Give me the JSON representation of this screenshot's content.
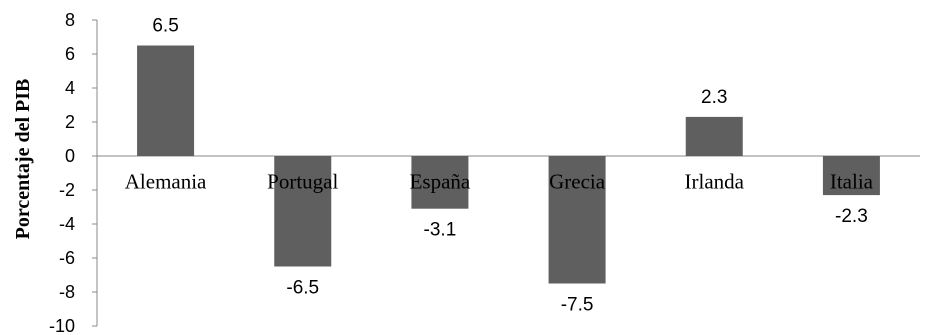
{
  "chart_data": {
    "type": "bar",
    "categories": [
      "Alemania",
      "Portugal",
      "España",
      "Grecia",
      "Irlanda",
      "Italia"
    ],
    "values": [
      6.5,
      -6.5,
      -3.1,
      -7.5,
      2.3,
      -2.3
    ],
    "value_labels": [
      "6.5",
      "-6.5",
      "-3.1",
      "-7.5",
      "2.3",
      "-2.3"
    ],
    "title": "",
    "xlabel": "",
    "ylabel": "Porcentaje del PIB",
    "ylim": [
      -10,
      8
    ],
    "yticks": [
      8,
      6,
      4,
      2,
      0,
      -2,
      -4,
      -6,
      -8,
      -10
    ],
    "grid": false,
    "bar_color": "#5f5f5f"
  }
}
